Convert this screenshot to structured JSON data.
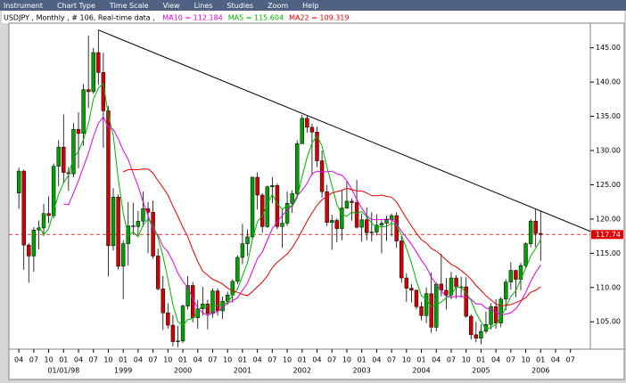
{
  "menu": [
    "Instrument",
    "Chart Type",
    "Time Scale",
    "View",
    "Lines",
    "Studies",
    "Zoom",
    "Help"
  ],
  "chart_data": {
    "type": "candlestick",
    "title": "USDJPY , Monthly , # 106, Real-time data ,",
    "up_color": "#00a000",
    "down_color": "#d00000",
    "x": [
      "1997-04",
      "1997-05",
      "1997-06",
      "1997-07",
      "1997-08",
      "1997-09",
      "1997-10",
      "1997-11",
      "1997-12",
      "1998-01",
      "1998-02",
      "1998-03",
      "1998-04",
      "1998-05",
      "1998-06",
      "1998-07",
      "1998-08",
      "1998-09",
      "1998-10",
      "1998-11",
      "1998-12",
      "1999-01",
      "1999-02",
      "1999-03",
      "1999-04",
      "1999-05",
      "1999-06",
      "1999-07",
      "1999-08",
      "1999-09",
      "1999-10",
      "1999-11",
      "1999-12",
      "2000-01",
      "2000-02",
      "2000-03",
      "2000-04",
      "2000-05",
      "2000-06",
      "2000-07",
      "2000-08",
      "2000-09",
      "2000-10",
      "2000-11",
      "2000-12",
      "2001-01",
      "2001-02",
      "2001-03",
      "2001-04",
      "2001-05",
      "2001-06",
      "2001-07",
      "2001-08",
      "2001-09",
      "2001-10",
      "2001-11",
      "2001-12",
      "2002-01",
      "2002-02",
      "2002-03",
      "2002-04",
      "2002-05",
      "2002-06",
      "2002-07",
      "2002-08",
      "2002-09",
      "2002-10",
      "2002-11",
      "2002-12",
      "2003-01",
      "2003-02",
      "2003-03",
      "2003-04",
      "2003-05",
      "2003-06",
      "2003-07",
      "2003-08",
      "2003-09",
      "2003-10",
      "2003-11",
      "2003-12",
      "2004-01",
      "2004-02",
      "2004-03",
      "2004-04",
      "2004-05",
      "2004-06",
      "2004-07",
      "2004-08",
      "2004-09",
      "2004-10",
      "2004-11",
      "2004-12",
      "2005-01",
      "2005-02",
      "2005-03",
      "2005-04",
      "2005-05",
      "2005-06",
      "2005-07",
      "2005-08",
      "2005-09",
      "2005-10",
      "2005-11",
      "2005-12",
      "2006-01"
    ],
    "open": [
      123.8,
      127.0,
      116.2,
      114.6,
      118.4,
      118.7,
      120.8,
      120.5,
      127.7,
      130.5,
      126.8,
      126.6,
      133.1,
      132.5,
      138.9,
      138.6,
      144.3,
      141.4,
      135.8,
      116.1,
      123.2,
      113.1,
      116.4,
      119.0,
      118.9,
      119.7,
      121.5,
      121.0,
      114.6,
      109.8,
      106.3,
      104.5,
      102.1,
      102.2,
      107.3,
      110.3,
      105.6,
      106.9,
      107.6,
      106.2,
      109.5,
      106.6,
      108.0,
      108.9,
      110.9,
      114.4,
      116.4,
      117.4,
      126.1,
      123.5,
      118.9,
      124.7,
      124.9,
      118.9,
      119.4,
      122.3,
      123.7,
      131.0,
      134.7,
      133.4,
      132.7,
      128.5,
      124.0,
      119.5,
      119.8,
      118.6,
      121.6,
      122.6,
      122.4,
      118.8,
      119.9,
      118.0,
      118.1,
      119.1,
      119.4,
      119.9,
      120.5,
      116.8,
      111.4,
      109.9,
      109.6,
      107.2,
      105.9,
      109.1,
      104.2,
      110.5,
      109.6,
      108.9,
      111.4,
      110.1,
      110.1,
      105.8,
      103.1,
      102.6,
      103.6,
      104.6,
      107.2,
      104.8,
      108.3,
      110.8,
      112.5,
      111.2,
      113.2,
      116.4,
      119.7,
      117.9
    ],
    "high": [
      127.5,
      127.2,
      116.5,
      118.8,
      119.8,
      122.2,
      123.3,
      128.1,
      131.5,
      135.3,
      127.6,
      134.0,
      135.6,
      139.7,
      146.8,
      145.0,
      147.6,
      144.3,
      136.5,
      124.5,
      123.6,
      116.9,
      122.5,
      122.4,
      121.2,
      124.0,
      122.5,
      122.7,
      115.7,
      111.7,
      107.7,
      106.0,
      104.4,
      107.5,
      111.7,
      110.8,
      108.2,
      110.1,
      108.2,
      109.9,
      109.9,
      108.7,
      109.4,
      111.2,
      114.7,
      119.3,
      118.5,
      126.2,
      126.8,
      123.8,
      124.9,
      126.1,
      125.2,
      121.4,
      124.0,
      124.2,
      131.5,
      135.2,
      135.1,
      133.9,
      133.5,
      130.0,
      125.0,
      120.6,
      120.1,
      124.2,
      125.5,
      123.0,
      125.7,
      120.8,
      121.7,
      121.0,
      120.7,
      119.8,
      120.5,
      120.8,
      121.0,
      117.6,
      112.1,
      110.5,
      109.7,
      107.9,
      110.0,
      112.2,
      110.7,
      114.9,
      111.4,
      112.3,
      111.8,
      111.6,
      111.5,
      106.1,
      105.0,
      104.6,
      106.5,
      107.7,
      108.3,
      108.6,
      111.2,
      113.7,
      112.6,
      113.6,
      116.6,
      120.0,
      121.4,
      121.2
    ],
    "low": [
      121.5,
      112.6,
      110.7,
      112.3,
      115.6,
      117.5,
      119.4,
      120.1,
      124.8,
      125.2,
      124.1,
      126.1,
      127.4,
      130.7,
      136.2,
      138.3,
      139.6,
      130.4,
      111.6,
      115.4,
      112.6,
      108.3,
      113.2,
      117.7,
      117.6,
      118.9,
      115.0,
      114.2,
      109.6,
      103.8,
      104.0,
      101.4,
      101.3,
      101.9,
      106.8,
      104.9,
      104.0,
      105.9,
      103.9,
      105.6,
      105.9,
      105.4,
      107.5,
      107.8,
      110.5,
      113.4,
      114.6,
      116.9,
      121.4,
      118.0,
      118.7,
      122.3,
      118.5,
      115.8,
      119.0,
      120.9,
      123.0,
      131.0,
      132.6,
      126.4,
      127.6,
      123.1,
      119.0,
      115.5,
      116.6,
      116.9,
      121.5,
      119.8,
      118.6,
      116.7,
      116.9,
      116.7,
      117.6,
      115.0,
      116.8,
      117.5,
      115.8,
      110.7,
      107.9,
      107.8,
      106.8,
      105.2,
      104.8,
      103.4,
      103.6,
      108.7,
      106.8,
      108.3,
      108.4,
      108.5,
      105.6,
      102.4,
      102.0,
      101.7,
      103.3,
      103.9,
      104.0,
      104.2,
      106.7,
      109.7,
      108.6,
      109.6,
      112.9,
      115.9,
      115.9,
      113.9
    ],
    "close": [
      127.0,
      116.2,
      114.6,
      118.4,
      118.7,
      120.8,
      120.5,
      127.7,
      130.5,
      126.8,
      126.6,
      133.1,
      132.5,
      138.9,
      138.6,
      144.3,
      141.4,
      135.8,
      116.1,
      123.2,
      113.1,
      116.4,
      119.0,
      118.9,
      119.7,
      121.5,
      121.0,
      114.6,
      109.8,
      106.3,
      104.5,
      102.1,
      102.2,
      107.3,
      110.3,
      105.6,
      106.9,
      107.6,
      106.2,
      109.5,
      106.6,
      108.0,
      108.9,
      110.9,
      114.4,
      116.4,
      117.4,
      126.1,
      123.5,
      118.9,
      124.7,
      124.9,
      118.9,
      119.4,
      122.3,
      123.7,
      131.0,
      134.7,
      133.4,
      132.7,
      128.5,
      124.0,
      119.5,
      119.8,
      118.6,
      121.6,
      122.6,
      122.4,
      118.8,
      119.9,
      118.0,
      118.1,
      119.1,
      119.4,
      119.9,
      120.5,
      116.8,
      111.4,
      109.9,
      109.6,
      107.2,
      105.9,
      109.1,
      104.2,
      110.5,
      109.6,
      108.9,
      111.4,
      110.1,
      110.1,
      105.8,
      103.1,
      102.6,
      103.6,
      104.6,
      107.2,
      104.8,
      108.3,
      110.8,
      112.5,
      111.2,
      113.2,
      116.4,
      119.7,
      117.9,
      117.74
    ],
    "series": [
      {
        "name": "MA10 = 112.184",
        "color": "#e000e0",
        "values": [
          null,
          null,
          null,
          null,
          null,
          null,
          null,
          null,
          null,
          122.2,
          122.1,
          123.8,
          125.6,
          127.6,
          129.6,
          132.0,
          134.0,
          134.9,
          133.4,
          133.1,
          131.7,
          130.0,
          128.7,
          126.7,
          124.8,
          122.5,
          120.5,
          118.4,
          117.7,
          116.0,
          115.2,
          113.8,
          112.1,
          110.9,
          110.0,
          108.4,
          107.0,
          106.3,
          105.9,
          106.3,
          106.5,
          107.1,
          107.7,
          108.1,
          108.5,
          109.6,
          110.6,
          112.4,
          114.2,
          115.2,
          116.9,
          118.6,
          119.6,
          120.5,
          121.3,
          122.0,
          123.4,
          124.2,
          125.2,
          126.6,
          127.0,
          126.9,
          126.9,
          127.0,
          126.6,
          126.4,
          125.6,
          124.3,
          122.9,
          121.6,
          120.5,
          119.9,
          119.9,
          119.9,
          120.0,
          119.9,
          119.3,
          118.2,
          117.3,
          116.3,
          115.2,
          114.0,
          113.0,
          111.5,
          110.5,
          109.5,
          108.7,
          108.6,
          108.7,
          108.7,
          108.6,
          108.3,
          107.6,
          107.6,
          107.0,
          106.8,
          106.4,
          106.0,
          106.1,
          106.3,
          106.9,
          107.9,
          109.3,
          110.9,
          112.2,
          113.3
        ]
      },
      {
        "name": "MA5 = 115.604",
        "color": "#00b000",
        "values": [
          null,
          null,
          null,
          null,
          119.0,
          117.7,
          118.6,
          121.2,
          123.6,
          125.3,
          126.4,
          128.9,
          129.9,
          131.6,
          133.9,
          137.5,
          139.1,
          139.8,
          135.2,
          132.2,
          125.9,
          120.9,
          117.6,
          118.1,
          117.4,
          119.1,
          120.0,
          119.1,
          117.3,
          114.6,
          111.2,
          107.5,
          105.0,
          104.5,
          105.3,
          105.5,
          106.5,
          107.5,
          107.3,
          107.2,
          107.4,
          107.6,
          107.8,
          108.8,
          109.8,
          111.7,
          113.6,
          117.0,
          119.6,
          120.5,
          122.1,
          123.6,
          122.2,
          121.4,
          122.0,
          121.8,
          123.1,
          126.2,
          129.0,
          131.1,
          132.1,
          130.7,
          127.6,
          124.9,
          122.1,
          120.7,
          120.4,
          121.0,
          120.8,
          121.1,
          120.3,
          119.4,
          118.8,
          118.9,
          118.9,
          119.4,
          119.1,
          117.6,
          115.7,
          113.6,
          111.0,
          108.8,
          108.3,
          107.2,
          107.4,
          107.9,
          108.5,
          108.9,
          110.1,
          110.0,
          109.3,
          108.1,
          106.3,
          105.0,
          103.9,
          104.2,
          104.6,
          105.7,
          107.1,
          108.7,
          109.5,
          111.2,
          112.8,
          114.6,
          115.7,
          117.0
        ]
      },
      {
        "name": "MA22 = 109.319",
        "color": "#e00000",
        "values": [
          null,
          null,
          null,
          null,
          null,
          null,
          null,
          null,
          null,
          null,
          null,
          null,
          null,
          null,
          null,
          null,
          null,
          null,
          null,
          null,
          null,
          126.9,
          127.2,
          127.2,
          127.2,
          127.3,
          127.3,
          126.7,
          125.6,
          124.6,
          123.5,
          121.9,
          120.4,
          118.8,
          117.4,
          115.5,
          113.8,
          112.4,
          111.8,
          111.2,
          110.9,
          110.5,
          109.9,
          109.5,
          109.3,
          109.0,
          108.8,
          109.4,
          110.1,
          110.8,
          111.7,
          112.9,
          113.7,
          114.3,
          114.9,
          115.8,
          117.0,
          118.3,
          119.7,
          120.9,
          122.0,
          122.8,
          123.3,
          123.8,
          124.0,
          124.2,
          124.5,
          124.3,
          124.1,
          124.1,
          123.8,
          123.4,
          123.4,
          123.5,
          123.3,
          123.2,
          122.5,
          121.3,
          120.1,
          119.0,
          117.9,
          117.0,
          116.5,
          115.7,
          115.3,
          114.7,
          114.0,
          113.4,
          113.0,
          112.5,
          111.9,
          111.2,
          110.3,
          109.6,
          108.8,
          108.2,
          107.6,
          107.3,
          107.4,
          107.5,
          107.8,
          108.1,
          108.5,
          109.3,
          109.6,
          110.1
        ]
      }
    ],
    "trendline": {
      "x": [
        "1998-08",
        "2006-11"
      ],
      "y": [
        147.6,
        118.2
      ],
      "color": "#000000"
    },
    "last_price": 117.74,
    "last_price_color": "#e00000",
    "xlim": [
      "1997-02",
      "2006-11"
    ],
    "ylim": [
      101.0,
      148.6
    ],
    "yticks": [
      {
        "value": 105,
        "label": "105.00"
      },
      {
        "value": 110,
        "label": "110.00"
      },
      {
        "value": 115,
        "label": "115.00"
      },
      {
        "value": 120,
        "label": "120.00"
      },
      {
        "value": 125,
        "label": "125.00"
      },
      {
        "value": 130,
        "label": "130.00"
      },
      {
        "value": 135,
        "label": "135.00"
      },
      {
        "value": 140,
        "label": "140.00"
      },
      {
        "value": 145,
        "label": "145.00"
      }
    ],
    "xticks": [
      {
        "value": "1997-04",
        "label": "04"
      },
      {
        "value": "1997-07",
        "label": "07"
      },
      {
        "value": "1997-10",
        "label": "10"
      },
      {
        "value": "1998-01",
        "label": "01"
      },
      {
        "value": "1998-04",
        "label": "04"
      },
      {
        "value": "1998-07",
        "label": "07"
      },
      {
        "value": "1998-10",
        "label": "10"
      },
      {
        "value": "1999-01",
        "label": "01"
      },
      {
        "value": "1999-04",
        "label": "04"
      },
      {
        "value": "1999-07",
        "label": "07"
      },
      {
        "value": "1999-10",
        "label": "10"
      },
      {
        "value": "2000-01",
        "label": "01"
      },
      {
        "value": "2000-04",
        "label": "04"
      },
      {
        "value": "2000-07",
        "label": "07"
      },
      {
        "value": "2000-10",
        "label": "10"
      },
      {
        "value": "2001-01",
        "label": "01"
      },
      {
        "value": "2001-04",
        "label": "04"
      },
      {
        "value": "2001-07",
        "label": "07"
      },
      {
        "value": "2001-10",
        "label": "10"
      },
      {
        "value": "2002-01",
        "label": "01"
      },
      {
        "value": "2002-04",
        "label": "04"
      },
      {
        "value": "2002-07",
        "label": "07"
      },
      {
        "value": "2002-10",
        "label": "10"
      },
      {
        "value": "2003-01",
        "label": "01"
      },
      {
        "value": "2003-04",
        "label": "04"
      },
      {
        "value": "2003-07",
        "label": "07"
      },
      {
        "value": "2003-10",
        "label": "10"
      },
      {
        "value": "2004-01",
        "label": "01"
      },
      {
        "value": "2004-04",
        "label": "04"
      },
      {
        "value": "2004-07",
        "label": "07"
      },
      {
        "value": "2004-10",
        "label": "10"
      },
      {
        "value": "2005-01",
        "label": "01"
      },
      {
        "value": "2005-04",
        "label": "04"
      },
      {
        "value": "2005-07",
        "label": "07"
      },
      {
        "value": "2005-10",
        "label": "10"
      },
      {
        "value": "2006-01",
        "label": "01"
      },
      {
        "value": "2006-04",
        "label": "04"
      },
      {
        "value": "2006-07",
        "label": "07"
      }
    ],
    "year_labels": [
      {
        "value": "1998-01",
        "label": "01/01/98"
      },
      {
        "value": "1999-01",
        "label": "1999"
      },
      {
        "value": "2000-01",
        "label": "2000"
      },
      {
        "value": "2001-01",
        "label": "2001"
      },
      {
        "value": "2002-01",
        "label": "2002"
      },
      {
        "value": "2003-01",
        "label": "2003"
      },
      {
        "value": "2004-01",
        "label": "2004"
      },
      {
        "value": "2005-01",
        "label": "2005"
      },
      {
        "value": "2006-01",
        "label": "2006"
      }
    ]
  }
}
